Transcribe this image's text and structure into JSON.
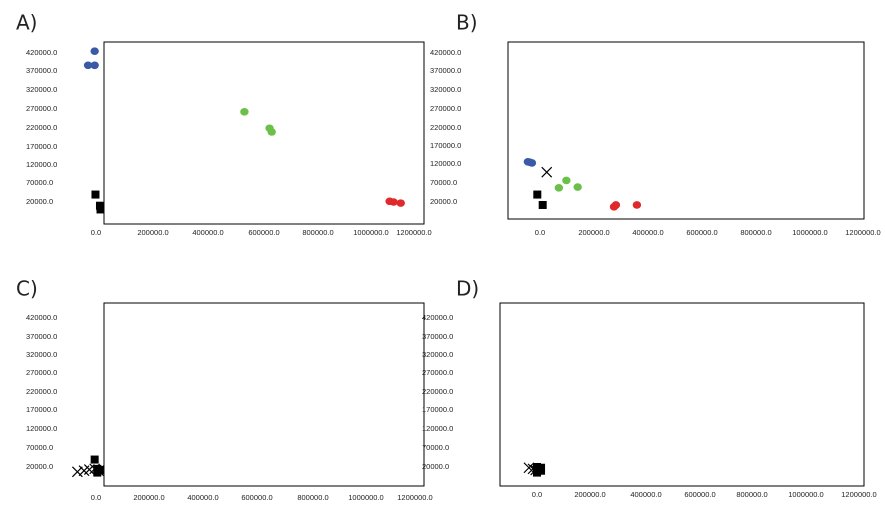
{
  "chart_data": [
    {
      "type": "scatter",
      "panel_label": "A)",
      "xticks": [
        "0.0",
        "200000.0",
        "400000.0",
        "600000.0",
        "800000.0",
        "1000000.0",
        "1200000.0"
      ],
      "yticks": [
        "420000.0",
        "370000.0",
        "320000.0",
        "270000.0",
        "220000.0",
        "170000.0",
        "120000.0",
        "70000.0",
        "20000.0"
      ],
      "xlim": [
        -60000,
        1250000
      ],
      "ylim": [
        -10000,
        455000
      ],
      "grid": false,
      "series": [
        {
          "marker": "circle",
          "color": "#3a5aa8",
          "points": [
            [
              -5000,
              425000
            ],
            [
              -30000,
              387000
            ],
            [
              -5000,
              387000
            ]
          ]
        },
        {
          "marker": "circle",
          "color": "#6cc04a",
          "points": [
            [
              560000,
              262000
            ],
            [
              655000,
              218000
            ],
            [
              663000,
              208000
            ]
          ]
        },
        {
          "marker": "circle",
          "color": "#e0292b",
          "points": [
            [
              1108000,
              22000
            ],
            [
              1123000,
              20000
            ],
            [
              1150000,
              17000
            ]
          ]
        },
        {
          "marker": "square",
          "color": "#000000",
          "points": [
            [
              -2000,
              40000
            ],
            [
              15000,
              10000
            ],
            [
              17000,
              0
            ]
          ]
        }
      ]
    },
    {
      "type": "scatter",
      "panel_label": "B)",
      "xticks": [
        "0.0",
        "200000.0",
        "400000.0",
        "600000.0",
        "800000.0",
        "1000000.0",
        "1200000.0"
      ],
      "yticks": [
        "420000.0",
        "370000.0",
        "320000.0",
        "270000.0",
        "220000.0",
        "170000.0",
        "120000.0",
        "70000.0",
        "20000.0"
      ],
      "xlim": [
        -80000,
        1250000
      ],
      "ylim": [
        -25000,
        455000
      ],
      "grid": false,
      "series": [
        {
          "marker": "circle",
          "color": "#3a5aa8",
          "points": [
            [
              -45000,
              128000
            ],
            [
              -38000,
              127000
            ],
            [
              -30000,
              125000
            ]
          ]
        },
        {
          "marker": "circle",
          "color": "#6cc04a",
          "points": [
            [
              70000,
              58000
            ],
            [
              98000,
              78000
            ],
            [
              140000,
              60000
            ]
          ]
        },
        {
          "marker": "circle",
          "color": "#e0292b",
          "points": [
            [
              275000,
              7000
            ],
            [
              282000,
              12000
            ],
            [
              360000,
              12000
            ]
          ]
        },
        {
          "marker": "square",
          "color": "#000000",
          "points": [
            [
              -10000,
              40000
            ],
            [
              10000,
              12000
            ]
          ]
        },
        {
          "marker": "cross",
          "color": "#000000",
          "points": [
            [
              25000,
              100000
            ]
          ]
        }
      ]
    },
    {
      "type": "scatter",
      "panel_label": "C)",
      "xticks": [
        "0.0",
        "200000.0",
        "400000.0",
        "600000.0",
        "800000.0",
        "1000000.0",
        "1200000.0"
      ],
      "yticks": [
        "420000.0",
        "370000.0",
        "320000.0",
        "270000.0",
        "220000.0",
        "170000.0",
        "120000.0",
        "70000.0",
        "20000.0"
      ],
      "xlim": [
        -80000,
        1250000
      ],
      "ylim": [
        -10000,
        455000
      ],
      "grid": false,
      "series": [
        {
          "marker": "square",
          "color": "#000000",
          "points": [
            [
              -5000,
              40000
            ],
            [
              5000,
              15000
            ],
            [
              15000,
              12000
            ],
            [
              5000,
              5000
            ]
          ]
        },
        {
          "marker": "cross",
          "color": "#000000",
          "points": [
            [
              -70000,
              7000
            ],
            [
              -45000,
              10000
            ],
            [
              -25000,
              13000
            ],
            [
              -5000,
              15000
            ],
            [
              10000,
              10000
            ]
          ]
        }
      ]
    },
    {
      "type": "scatter",
      "panel_label": "D)",
      "xticks": [
        "0.0",
        "200000.0",
        "400000.0",
        "600000.0",
        "800000.0",
        "1000000.0",
        "1200000.0"
      ],
      "yticks": [
        "420000.0",
        "370000.0",
        "320000.0",
        "270000.0",
        "220000.0",
        "170000.0",
        "120000.0",
        "70000.0",
        "20000.0"
      ],
      "xlim": [
        -80000,
        1250000
      ],
      "ylim": [
        -10000,
        455000
      ],
      "grid": false,
      "series": [
        {
          "marker": "square",
          "color": "#000000",
          "points": [
            [
              0,
              20000
            ],
            [
              15000,
              18000
            ],
            [
              5000,
              12000
            ],
            [
              15000,
              10000
            ],
            [
              0,
              5000
            ]
          ]
        },
        {
          "marker": "cross",
          "color": "#000000",
          "points": [
            [
              -30000,
              18000
            ],
            [
              -15000,
              15000
            ],
            [
              -5000,
              12000
            ]
          ]
        }
      ]
    }
  ]
}
